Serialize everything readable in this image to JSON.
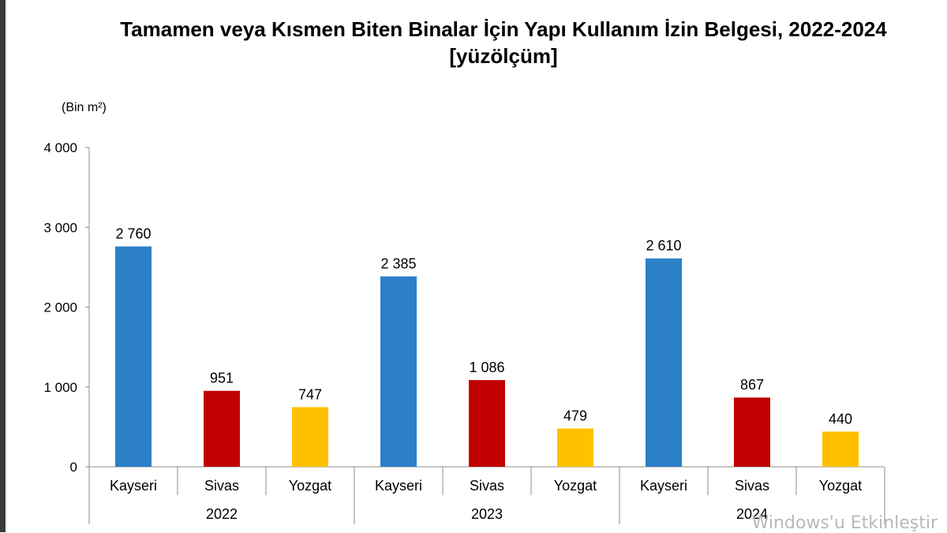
{
  "chart_data": {
    "type": "bar",
    "title": "Tamamen veya Kısmen Biten Binalar İçin Yapı Kullanım İzin Belgesi, 2022-2024",
    "subtitle": "[yüzölçüm]",
    "unit_label": "(Bin m²)",
    "ylim": [
      0,
      4000
    ],
    "y_ticks": [
      0,
      1000,
      2000,
      3000,
      4000
    ],
    "y_tick_labels": [
      "0",
      "1 000",
      "2 000",
      "3 000",
      "4 000"
    ],
    "grid": false,
    "groups": [
      {
        "year": "2022",
        "bars": [
          {
            "category": "Kayseri",
            "value": 2760,
            "label": "2 760",
            "color": "#2c80c8"
          },
          {
            "category": "Sivas",
            "value": 951,
            "label": "951",
            "color": "#c00000"
          },
          {
            "category": "Yozgat",
            "value": 747,
            "label": "747",
            "color": "#ffc000"
          }
        ]
      },
      {
        "year": "2023",
        "bars": [
          {
            "category": "Kayseri",
            "value": 2385,
            "label": "2 385",
            "color": "#2c80c8"
          },
          {
            "category": "Sivas",
            "value": 1086,
            "label": "1 086",
            "color": "#c00000"
          },
          {
            "category": "Yozgat",
            "value": 479,
            "label": "479",
            "color": "#ffc000"
          }
        ]
      },
      {
        "year": "2024",
        "bars": [
          {
            "category": "Kayseri",
            "value": 2610,
            "label": "2 610",
            "color": "#2c80c8"
          },
          {
            "category": "Sivas",
            "value": 867,
            "label": "867",
            "color": "#c00000"
          },
          {
            "category": "Yozgat",
            "value": 440,
            "label": "440",
            "color": "#ffc000"
          }
        ]
      }
    ]
  },
  "watermark": "Windows'u Etkinleştir"
}
